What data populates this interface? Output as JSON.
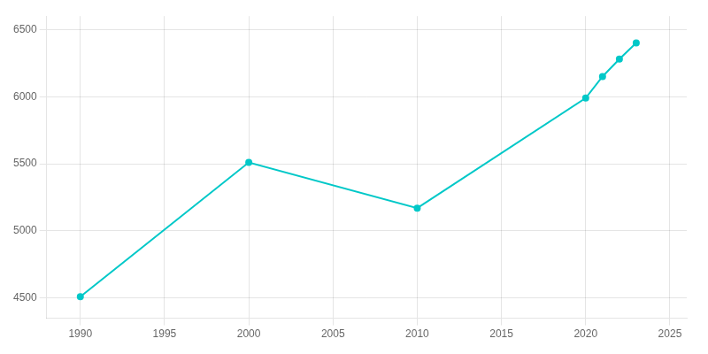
{
  "chart_data": {
    "type": "line",
    "x": [
      1990,
      2000,
      2010,
      2020,
      2021,
      2022,
      2023
    ],
    "values": [
      4510,
      5510,
      5170,
      5990,
      6150,
      6280,
      6400
    ],
    "color": "#00C8C8",
    "marker": "circle",
    "xlim": [
      1988,
      2026
    ],
    "ylim": [
      4350,
      6600
    ],
    "xticks": [
      1990,
      1995,
      2000,
      2005,
      2010,
      2015,
      2020,
      2025
    ],
    "yticks": [
      4500,
      5000,
      5500,
      6000,
      6500
    ],
    "grid": true
  }
}
